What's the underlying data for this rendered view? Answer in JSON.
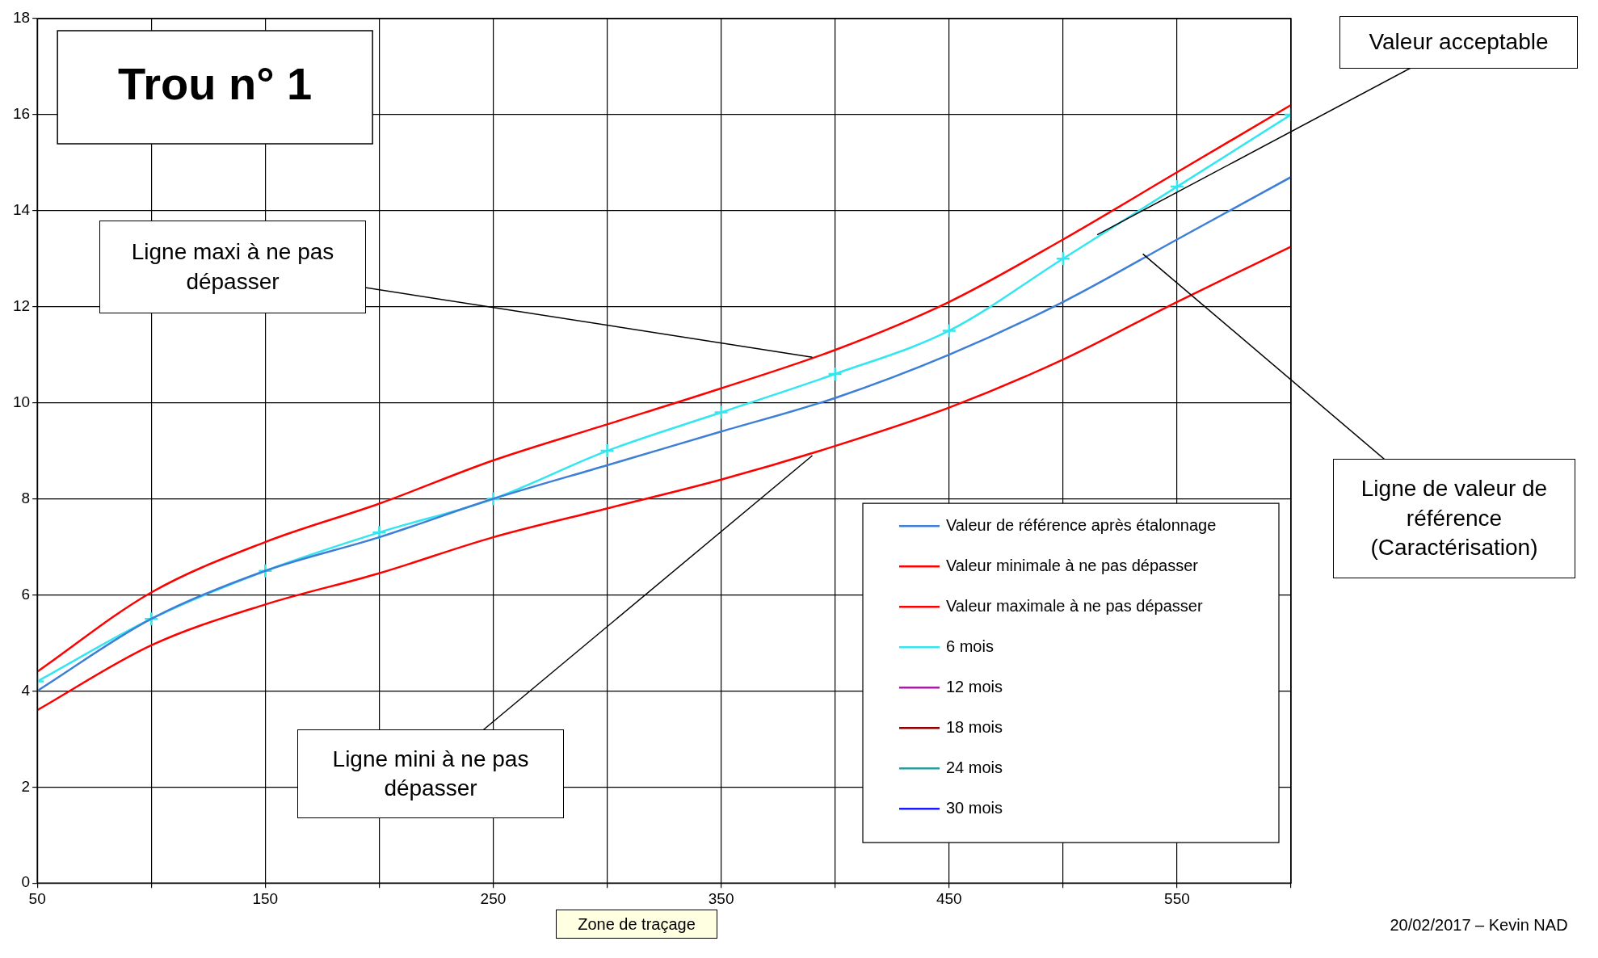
{
  "chart_data": {
    "type": "line",
    "title": "Trou n° 1",
    "x": [
      50,
      100,
      150,
      200,
      250,
      300,
      350,
      400,
      450,
      500,
      550,
      600
    ],
    "series": [
      {
        "name": "Valeur de référence après étalonnage",
        "color": "#3d7fd6",
        "marker": "none",
        "values": [
          4.0,
          5.5,
          6.5,
          7.2,
          8.0,
          8.7,
          9.4,
          10.1,
          11.0,
          12.1,
          13.4,
          14.7
        ]
      },
      {
        "name": "Valeur minimale à ne pas dépasser",
        "color": "#ff0000",
        "marker": "none",
        "values": [
          3.6,
          4.95,
          5.8,
          6.45,
          7.2,
          7.8,
          8.4,
          9.1,
          9.9,
          10.9,
          12.1,
          13.25
        ]
      },
      {
        "name": "Valeur maximale à ne pas dépasser",
        "color": "#ff0000",
        "marker": "none",
        "values": [
          4.4,
          6.05,
          7.1,
          7.9,
          8.8,
          9.55,
          10.3,
          11.1,
          12.1,
          13.4,
          14.8,
          16.2
        ]
      },
      {
        "name": "6 mois",
        "color": "#33e6f0",
        "marker": "cross",
        "values": [
          4.2,
          5.5,
          6.5,
          7.3,
          8.0,
          9.0,
          9.8,
          10.6,
          11.5,
          13.0,
          14.5,
          16.0
        ]
      },
      {
        "name": "12 mois",
        "color": "#a020a0",
        "marker": "star",
        "values": [
          null,
          null,
          null,
          null,
          null,
          null,
          null,
          null,
          null,
          null,
          null,
          null
        ]
      },
      {
        "name": "18 mois",
        "color": "#8b0000",
        "marker": "diamond",
        "values": [
          null,
          null,
          null,
          null,
          null,
          null,
          null,
          null,
          null,
          null,
          null,
          null
        ]
      },
      {
        "name": "24 mois",
        "color": "#2a9a9a",
        "marker": "cross",
        "values": [
          null,
          null,
          null,
          null,
          null,
          null,
          null,
          null,
          null,
          null,
          null,
          null
        ]
      },
      {
        "name": "30 mois",
        "color": "#1a1aff",
        "marker": "square",
        "values": [
          null,
          null,
          null,
          null,
          null,
          null,
          null,
          null,
          null,
          null,
          null,
          null
        ]
      }
    ],
    "xlim": [
      50,
      600
    ],
    "xticks": [
      50,
      {
        "value": 100,
        "label": null
      },
      150,
      {
        "value": 200,
        "label": null
      },
      250,
      {
        "value": 300,
        "label": null
      },
      350,
      {
        "value": 400,
        "label": null
      },
      450,
      {
        "value": 500,
        "label": null
      },
      550,
      {
        "value": 600,
        "label": null
      }
    ],
    "ylim": [
      0,
      18
    ],
    "yticks": [
      0,
      2,
      4,
      6,
      8,
      10,
      12,
      14,
      16,
      18
    ],
    "grid": true,
    "legend": "bottom right",
    "annotations": [
      {
        "text": "Ligne maxi à ne pas dépasser",
        "x": 390,
        "y": 10.95
      },
      {
        "text": "Valeur acceptable",
        "x": 515,
        "y": 13.5
      },
      {
        "text": "Ligne de valeur de référence (Caractérisation)",
        "x": 535,
        "y": 13.1
      },
      {
        "text": "Ligne mini à ne pas dépasser",
        "x": 390,
        "y": 8.9
      },
      "20/02/2017 – Kevin NAD",
      "Zone de traçage"
    ]
  }
}
